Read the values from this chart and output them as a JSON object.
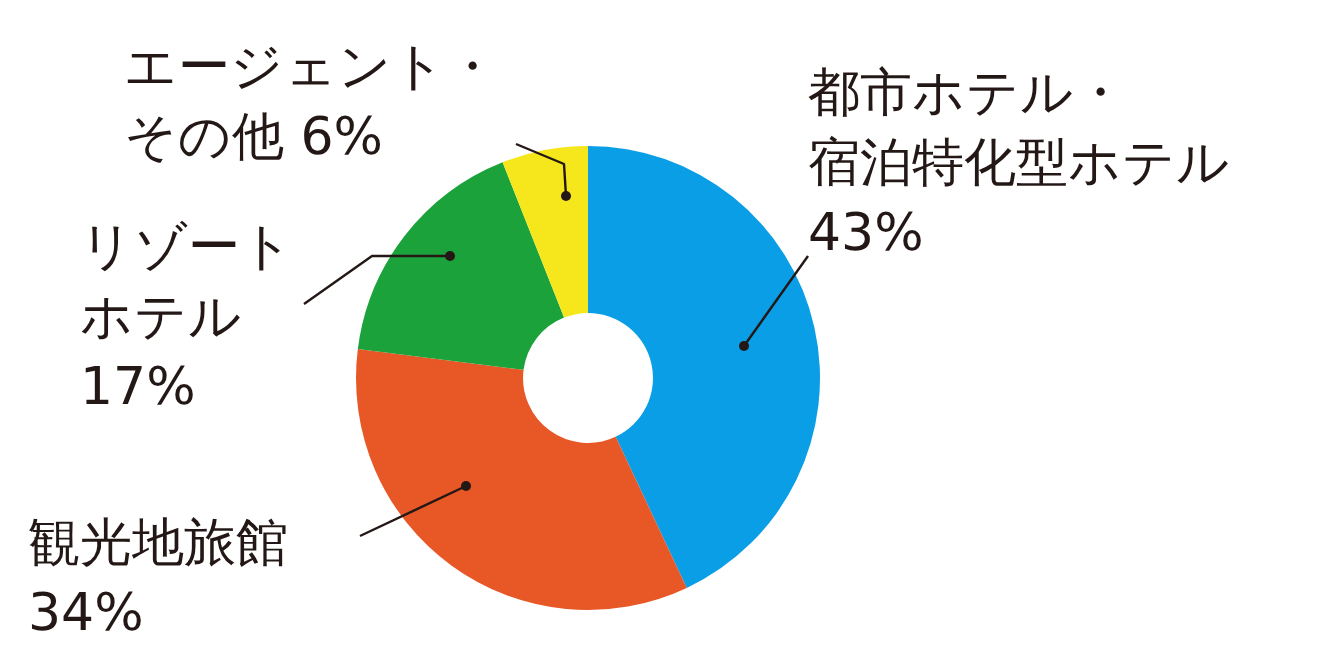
{
  "chart_data": {
    "type": "donut",
    "categories": [
      "都市ホテル・宿泊特化型ホテル",
      "観光地旅館",
      "リゾートホテル",
      "エージェント・その他"
    ],
    "values": [
      43,
      34,
      17,
      6
    ],
    "colors": [
      "#0a9ee6",
      "#e85726",
      "#1ba23b",
      "#f6e71c"
    ],
    "value_labels": [
      "43%",
      "34%",
      "17%",
      "6%"
    ],
    "legend": false
  }
}
